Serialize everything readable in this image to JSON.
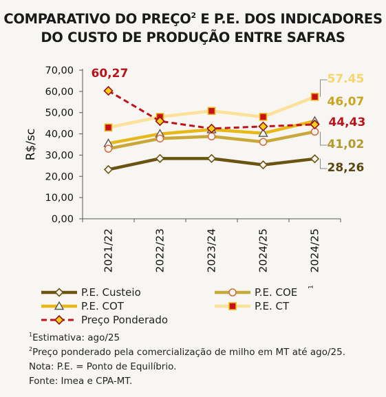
{
  "title_line1": "COMPARATIVO DO PREÇO",
  "title_sup": "2",
  "title_line1_rest": " E P.E. DOS INDICADORES",
  "title_line2": "DO CUSTO DE PRODUÇÃO ENTRE SAFRAS",
  "chart_data": {
    "type": "line",
    "ylabel": "R$/sc",
    "ylim": [
      0,
      70
    ],
    "yticks": [
      "0,00",
      "10,00",
      "20,00",
      "30,00",
      "40,00",
      "50,00",
      "60,00",
      "70,00"
    ],
    "categories": [
      "2021/22",
      "2022/23",
      "2023/24",
      "2024/25",
      "2024/25"
    ],
    "last_category_sup": "1",
    "series": [
      {
        "name": "P.E. Custeio",
        "color": "#6b5412",
        "marker": "diamond",
        "values": [
          23.2,
          28.4,
          28.4,
          25.4,
          28.26
        ],
        "end_label": "28,26"
      },
      {
        "name": "P.E. COE",
        "color": "#c9a83a",
        "marker": "circle",
        "values": [
          33.0,
          37.8,
          38.8,
          36.2,
          41.02
        ],
        "end_label": "41,02"
      },
      {
        "name": "P.E. COT",
        "color": "#e8b818",
        "marker": "triangle",
        "values": [
          35.5,
          40.0,
          42.0,
          40.3,
          46.07
        ],
        "end_label": "46,07"
      },
      {
        "name": "P.E. CT",
        "color": "#fbe199",
        "marker": "square",
        "values": [
          43.0,
          48.0,
          50.8,
          48.0,
          57.45
        ],
        "end_label": "57.45"
      },
      {
        "name": "Preço Ponderado",
        "color": "#c0121a",
        "marker": "diamond-yellow",
        "dashed": true,
        "values": [
          60.27,
          46.0,
          42.5,
          43.5,
          44.43
        ],
        "end_label": "44,43",
        "start_label": "60,27"
      }
    ]
  },
  "notes": {
    "n1_sup": "1",
    "n1": "Estimativa: ago/25",
    "n2_sup": "2",
    "n2": "Preço ponderado pela comercialização de milho em MT até ago/25. Nota: P.E. = Ponto de Equilíbrio.",
    "n3": "Fonte: Imea e CPA-MT."
  }
}
